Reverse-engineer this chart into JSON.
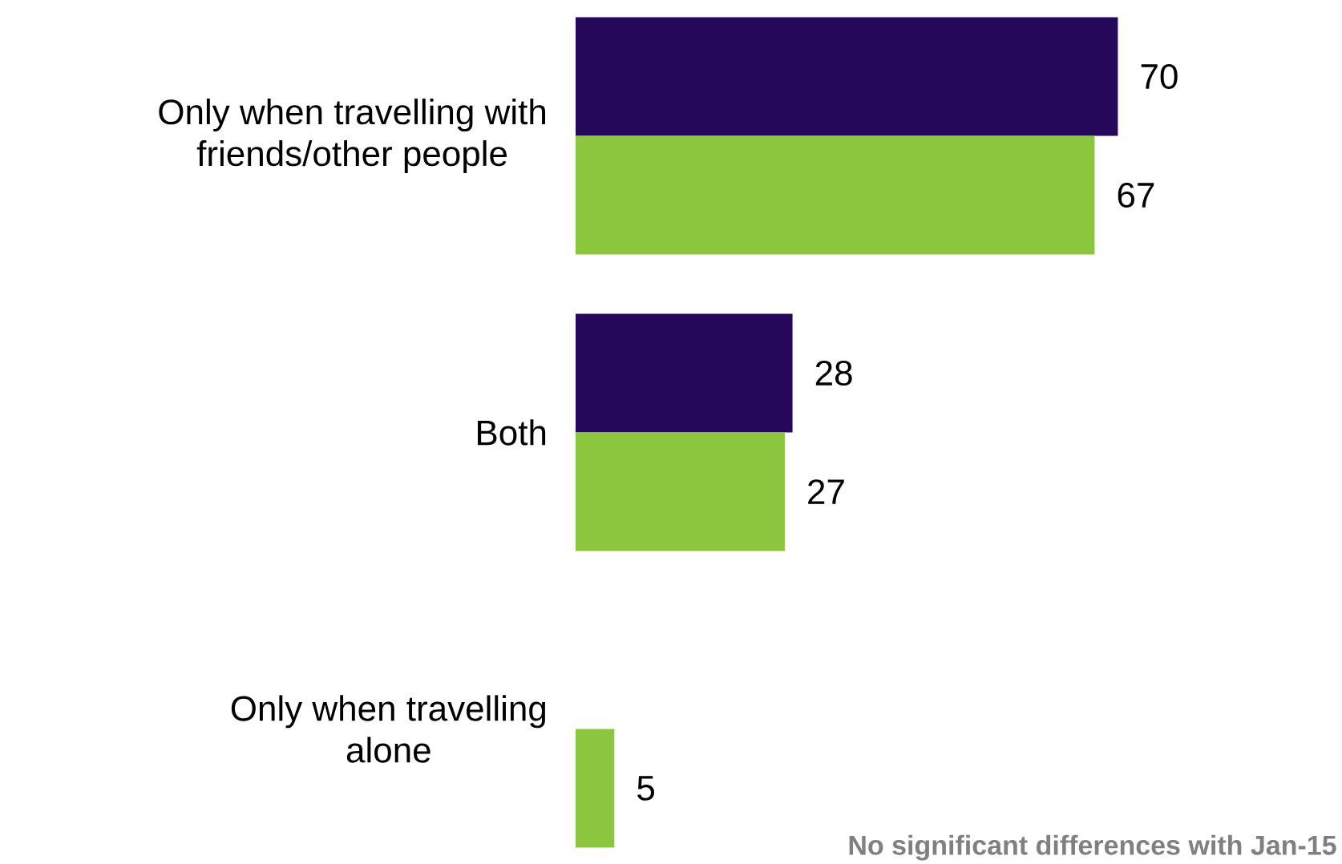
{
  "chart_data": {
    "type": "bar",
    "orientation": "horizontal",
    "categories": [
      "Only when travelling with friends/other people",
      "Both",
      "Only when travelling alone"
    ],
    "series": [
      {
        "color": "#25085a",
        "values": [
          70,
          28,
          null
        ]
      },
      {
        "color": "#8cc63f",
        "values": [
          67,
          27,
          5
        ]
      }
    ],
    "data_labels": true,
    "annotations": [
      "No significant differences with Jan-15"
    ]
  }
}
